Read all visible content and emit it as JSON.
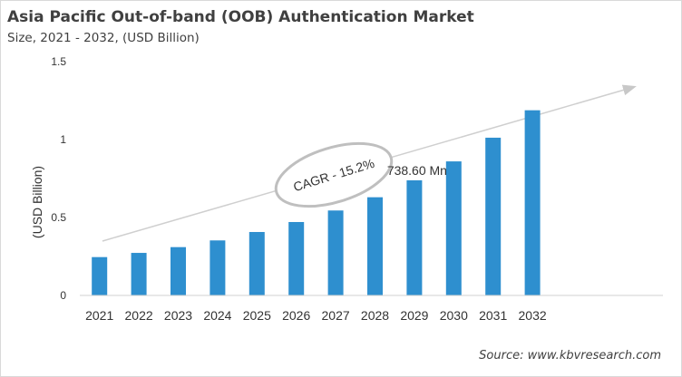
{
  "chart_data": {
    "type": "bar",
    "title": "Asia Pacific Out-of-band (OOB) Authentication Market",
    "subtitle": "Size, 2021 - 2032, (USD Billion)",
    "xlabel": "",
    "ylabel": "(USD Billion)",
    "ylim": [
      0,
      1.5
    ],
    "yticks": [
      "0",
      "0.5",
      "1",
      "1.5"
    ],
    "yticks_values": [
      0,
      0.5,
      1,
      1.5
    ],
    "grid": false,
    "categories": [
      "2021",
      "2022",
      "2023",
      "2024",
      "2025",
      "2026",
      "2027",
      "2028",
      "2029",
      "2030",
      "2031",
      "2032"
    ],
    "values": [
      0.246,
      0.273,
      0.31,
      0.353,
      0.407,
      0.471,
      0.545,
      0.63,
      0.7386,
      0.86,
      1.012,
      1.188
    ],
    "bar_color": "#2e8fcf",
    "annotations": {
      "data_label": "738.60 Mn",
      "data_label_category": "2029",
      "cagr": "CAGR - 15.2%"
    },
    "source": "Source: www.kbvresearch.com"
  }
}
